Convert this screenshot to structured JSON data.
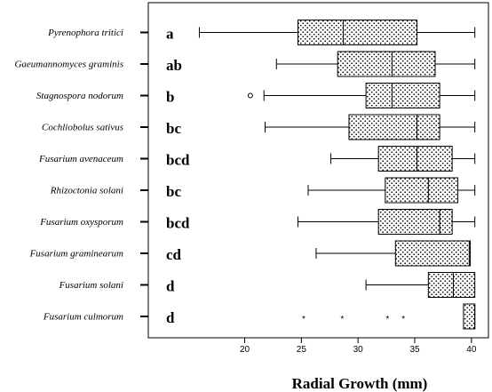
{
  "chart_data": {
    "type": "boxplot",
    "orientation": "horizontal",
    "xlabel": "Radial Growth (mm)",
    "xlim": [
      11.5,
      41.5
    ],
    "xticks": [
      20,
      25,
      30,
      35,
      40
    ],
    "grid": false,
    "series": [
      {
        "name": "Pyrenophora tritici",
        "group": "a",
        "whisker_low": 16.0,
        "q1": 24.7,
        "median": 28.7,
        "q3": 35.2,
        "whisker_high": 40.3,
        "outliers": [],
        "extremes": []
      },
      {
        "name": "Gaeumannomyces graminis",
        "group": "ab",
        "whisker_low": 22.8,
        "q1": 28.2,
        "median": 33.0,
        "q3": 36.8,
        "whisker_high": 40.3,
        "outliers": [],
        "extremes": []
      },
      {
        "name": "Stagnospora nodorum",
        "group": "b",
        "whisker_low": 21.7,
        "q1": 30.7,
        "median": 33.0,
        "q3": 37.2,
        "whisker_high": 40.3,
        "outliers": [
          20.5
        ],
        "extremes": []
      },
      {
        "name": "Cochliobolus sativus",
        "group": "bc",
        "whisker_low": 21.8,
        "q1": 29.2,
        "median": 35.2,
        "q3": 37.2,
        "whisker_high": 40.3,
        "outliers": [],
        "extremes": []
      },
      {
        "name": "Fusarium avenaceum",
        "group": "bcd",
        "whisker_low": 27.6,
        "q1": 31.8,
        "median": 35.2,
        "q3": 38.3,
        "whisker_high": 40.3,
        "outliers": [],
        "extremes": []
      },
      {
        "name": "Rhizoctonia solani",
        "group": "bc",
        "whisker_low": 25.6,
        "q1": 32.4,
        "median": 36.2,
        "q3": 38.8,
        "whisker_high": 40.3,
        "outliers": [],
        "extremes": []
      },
      {
        "name": "Fusarium oxysporum",
        "group": "bcd",
        "whisker_low": 24.7,
        "q1": 31.8,
        "median": 37.2,
        "q3": 38.3,
        "whisker_high": 40.3,
        "outliers": [],
        "extremes": []
      },
      {
        "name": "Fusarium graminearum",
        "group": "cd",
        "whisker_low": 26.3,
        "q1": 33.3,
        "median": 39.8,
        "q3": 39.9,
        "whisker_high": 39.9,
        "outliers": [],
        "extremes": []
      },
      {
        "name": "Fusarium solani",
        "group": "d",
        "whisker_low": 30.7,
        "q1": 36.2,
        "median": 38.4,
        "q3": 40.3,
        "whisker_high": 40.3,
        "outliers": [],
        "extremes": []
      },
      {
        "name": "Fusarium culmorum",
        "group": "d",
        "whisker_low": 39.3,
        "q1": 39.3,
        "median": 40.3,
        "q3": 40.3,
        "whisker_high": 40.3,
        "outliers": [],
        "extremes": [
          25.2,
          28.6,
          32.6,
          34.0
        ]
      }
    ]
  }
}
